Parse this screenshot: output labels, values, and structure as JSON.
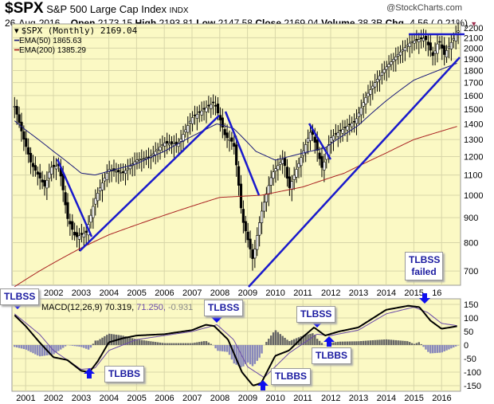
{
  "header": {
    "symbol": "$SPX",
    "name": "S&P 500 Large Cap Index",
    "exchange": "INDX",
    "copyright": "@StockCharts.com",
    "date": "26-Aug-2016",
    "open_label": "Open",
    "open": "2173.15",
    "high_label": "High",
    "high": "2193.81",
    "low_label": "Low",
    "low": "2147.58",
    "close_label": "Close",
    "close": "2169.04",
    "volume_label": "Volume",
    "volume": "38.3B",
    "chg_label": "Chg",
    "chg": "-4.56 (-0.21%)",
    "chg_arrow": "▼"
  },
  "legend": {
    "price": "$SPX (Monthly) 2169.04",
    "ema50": "EMA(50) 1865.63",
    "ema200": "EMA(200) 1385.29",
    "macd_prefix": "MACD(12,26,9)",
    "macd_val": "70.319,",
    "signal_val": "71.250,",
    "hist_val": "-0.931"
  },
  "annotations": [
    {
      "text": "TLBSS"
    },
    {
      "text": "TLBBS"
    },
    {
      "text": "TLBSS"
    },
    {
      "text": "TLBBS"
    },
    {
      "text": "TLBSS"
    },
    {
      "text": "TLBBS"
    },
    {
      "text": "TLBSS failed"
    }
  ],
  "colors": {
    "bg": "#fbf9c4",
    "grid": "#d8d6a8",
    "trend": "#1a1acc",
    "ema50": "#1a1a7a",
    "ema200": "#aa2222",
    "signal": "#6a4aa8",
    "hist": "#8888bb",
    "hist_pos": "#666666"
  },
  "chart_data": [
    {
      "type": "line",
      "title": "$SPX (Monthly)",
      "scale": "log",
      "ylim": [
        650,
        2250
      ],
      "yticks": [
        700,
        800,
        900,
        1000,
        1100,
        1200,
        1300,
        1400,
        1500,
        1600,
        1700,
        1800,
        1900,
        2000,
        2100,
        2200
      ],
      "xticks": [
        "2002",
        "2003",
        "2004",
        "2005",
        "2006",
        "2007",
        "2008",
        "2009",
        "2010",
        "2011",
        "2012",
        "2013",
        "2014",
        "2015",
        "16"
      ],
      "series": [
        {
          "name": "$SPX",
          "points": [
            [
              2000.6,
              1520
            ],
            [
              2000.9,
              1320
            ],
            [
              2001.2,
              1160
            ],
            [
              2001.7,
              1040
            ],
            [
              2001.9,
              1140
            ],
            [
              2002.2,
              1150
            ],
            [
              2002.5,
              900
            ],
            [
              2002.8,
              820
            ],
            [
              2003.2,
              840
            ],
            [
              2003.5,
              980
            ],
            [
              2004.0,
              1130
            ],
            [
              2004.5,
              1110
            ],
            [
              2005,
              1180
            ],
            [
              2005.5,
              1200
            ],
            [
              2006,
              1280
            ],
            [
              2006.5,
              1270
            ],
            [
              2007,
              1440
            ],
            [
              2007.8,
              1550
            ],
            [
              2008.2,
              1320
            ],
            [
              2008.5,
              1280
            ],
            [
              2008.8,
              900
            ],
            [
              2009.2,
              735
            ],
            [
              2009.5,
              920
            ],
            [
              2009.9,
              1110
            ],
            [
              2010.3,
              1190
            ],
            [
              2010.5,
              1030
            ],
            [
              2010.9,
              1180
            ],
            [
              2011.3,
              1360
            ],
            [
              2011.7,
              1130
            ],
            [
              2012.0,
              1310
            ],
            [
              2012.4,
              1360
            ],
            [
              2012.9,
              1420
            ],
            [
              2013.3,
              1600
            ],
            [
              2013.9,
              1800
            ],
            [
              2014.5,
              1960
            ],
            [
              2014.9,
              2060
            ],
            [
              2015.4,
              2100
            ],
            [
              2015.7,
              1920
            ],
            [
              2015.9,
              2080
            ],
            [
              2016.1,
              1940
            ],
            [
              2016.6,
              2169
            ]
          ]
        },
        {
          "name": "EMA(50)",
          "points": [
            [
              2000.6,
              1420
            ],
            [
              2001,
              1360
            ],
            [
              2002,
              1230
            ],
            [
              2003,
              1110
            ],
            [
              2003.5,
              1100
            ],
            [
              2004,
              1120
            ],
            [
              2005,
              1160
            ],
            [
              2006,
              1230
            ],
            [
              2007,
              1320
            ],
            [
              2007.9,
              1400
            ],
            [
              2008.5,
              1370
            ],
            [
              2009.3,
              1230
            ],
            [
              2010,
              1180
            ],
            [
              2011,
              1220
            ],
            [
              2011.8,
              1250
            ],
            [
              2013,
              1390
            ],
            [
              2014,
              1560
            ],
            [
              2015,
              1720
            ],
            [
              2016.6,
              1866
            ]
          ]
        },
        {
          "name": "EMA(200)",
          "points": [
            [
              2000.6,
              650
            ],
            [
              2001.5,
              700
            ],
            [
              2003,
              780
            ],
            [
              2004,
              830
            ],
            [
              2006,
              910
            ],
            [
              2008,
              990
            ],
            [
              2009.5,
              1000
            ],
            [
              2011,
              1040
            ],
            [
              2012.5,
              1110
            ],
            [
              2014,
              1220
            ],
            [
              2015,
              1300
            ],
            [
              2016.6,
              1385
            ]
          ]
        }
      ]
    },
    {
      "type": "line",
      "title": "MACD(12,26,9)",
      "ylim": [
        -170,
        170
      ],
      "yticks": [
        150,
        100,
        50,
        0,
        -50,
        -100,
        -150
      ],
      "xticks": [
        "2001",
        "2002",
        "2003",
        "2004",
        "2005",
        "2006",
        "2007",
        "2008",
        "2009",
        "2010",
        "2011",
        "2012",
        "2013",
        "2014",
        "2015",
        "2016"
      ],
      "series": [
        {
          "name": "MACD",
          "points": [
            [
              2000.6,
              110
            ],
            [
              2001,
              70
            ],
            [
              2001.5,
              10
            ],
            [
              2002,
              -45
            ],
            [
              2002.5,
              -55
            ],
            [
              2003,
              -95
            ],
            [
              2003.3,
              -100
            ],
            [
              2003.6,
              -60
            ],
            [
              2004,
              10
            ],
            [
              2004.5,
              25
            ],
            [
              2005,
              35
            ],
            [
              2006,
              40
            ],
            [
              2007,
              55
            ],
            [
              2007.5,
              75
            ],
            [
              2007.8,
              70
            ],
            [
              2008.3,
              20
            ],
            [
              2008.8,
              -100
            ],
            [
              2009.2,
              -150
            ],
            [
              2009.5,
              -140
            ],
            [
              2010,
              -40
            ],
            [
              2010.5,
              -20
            ],
            [
              2011,
              30
            ],
            [
              2011.4,
              65
            ],
            [
              2011.8,
              35
            ],
            [
              2012.3,
              50
            ],
            [
              2013,
              65
            ],
            [
              2014,
              130
            ],
            [
              2014.8,
              145
            ],
            [
              2015.2,
              140
            ],
            [
              2015.6,
              90
            ],
            [
              2016,
              60
            ],
            [
              2016.6,
              70
            ]
          ]
        },
        {
          "name": "Signal",
          "points": [
            [
              2000.6,
              115
            ],
            [
              2001.5,
              40
            ],
            [
              2002,
              -20
            ],
            [
              2003,
              -90
            ],
            [
              2003.5,
              -85
            ],
            [
              2004,
              -20
            ],
            [
              2005,
              20
            ],
            [
              2006,
              35
            ],
            [
              2007,
              50
            ],
            [
              2007.9,
              75
            ],
            [
              2008.5,
              20
            ],
            [
              2009,
              -80
            ],
            [
              2009.6,
              -120
            ],
            [
              2010.5,
              -30
            ],
            [
              2011.5,
              40
            ],
            [
              2012,
              35
            ],
            [
              2013,
              55
            ],
            [
              2014,
              115
            ],
            [
              2015,
              140
            ],
            [
              2015.5,
              120
            ],
            [
              2016,
              80
            ],
            [
              2016.6,
              71
            ]
          ]
        }
      ]
    }
  ]
}
